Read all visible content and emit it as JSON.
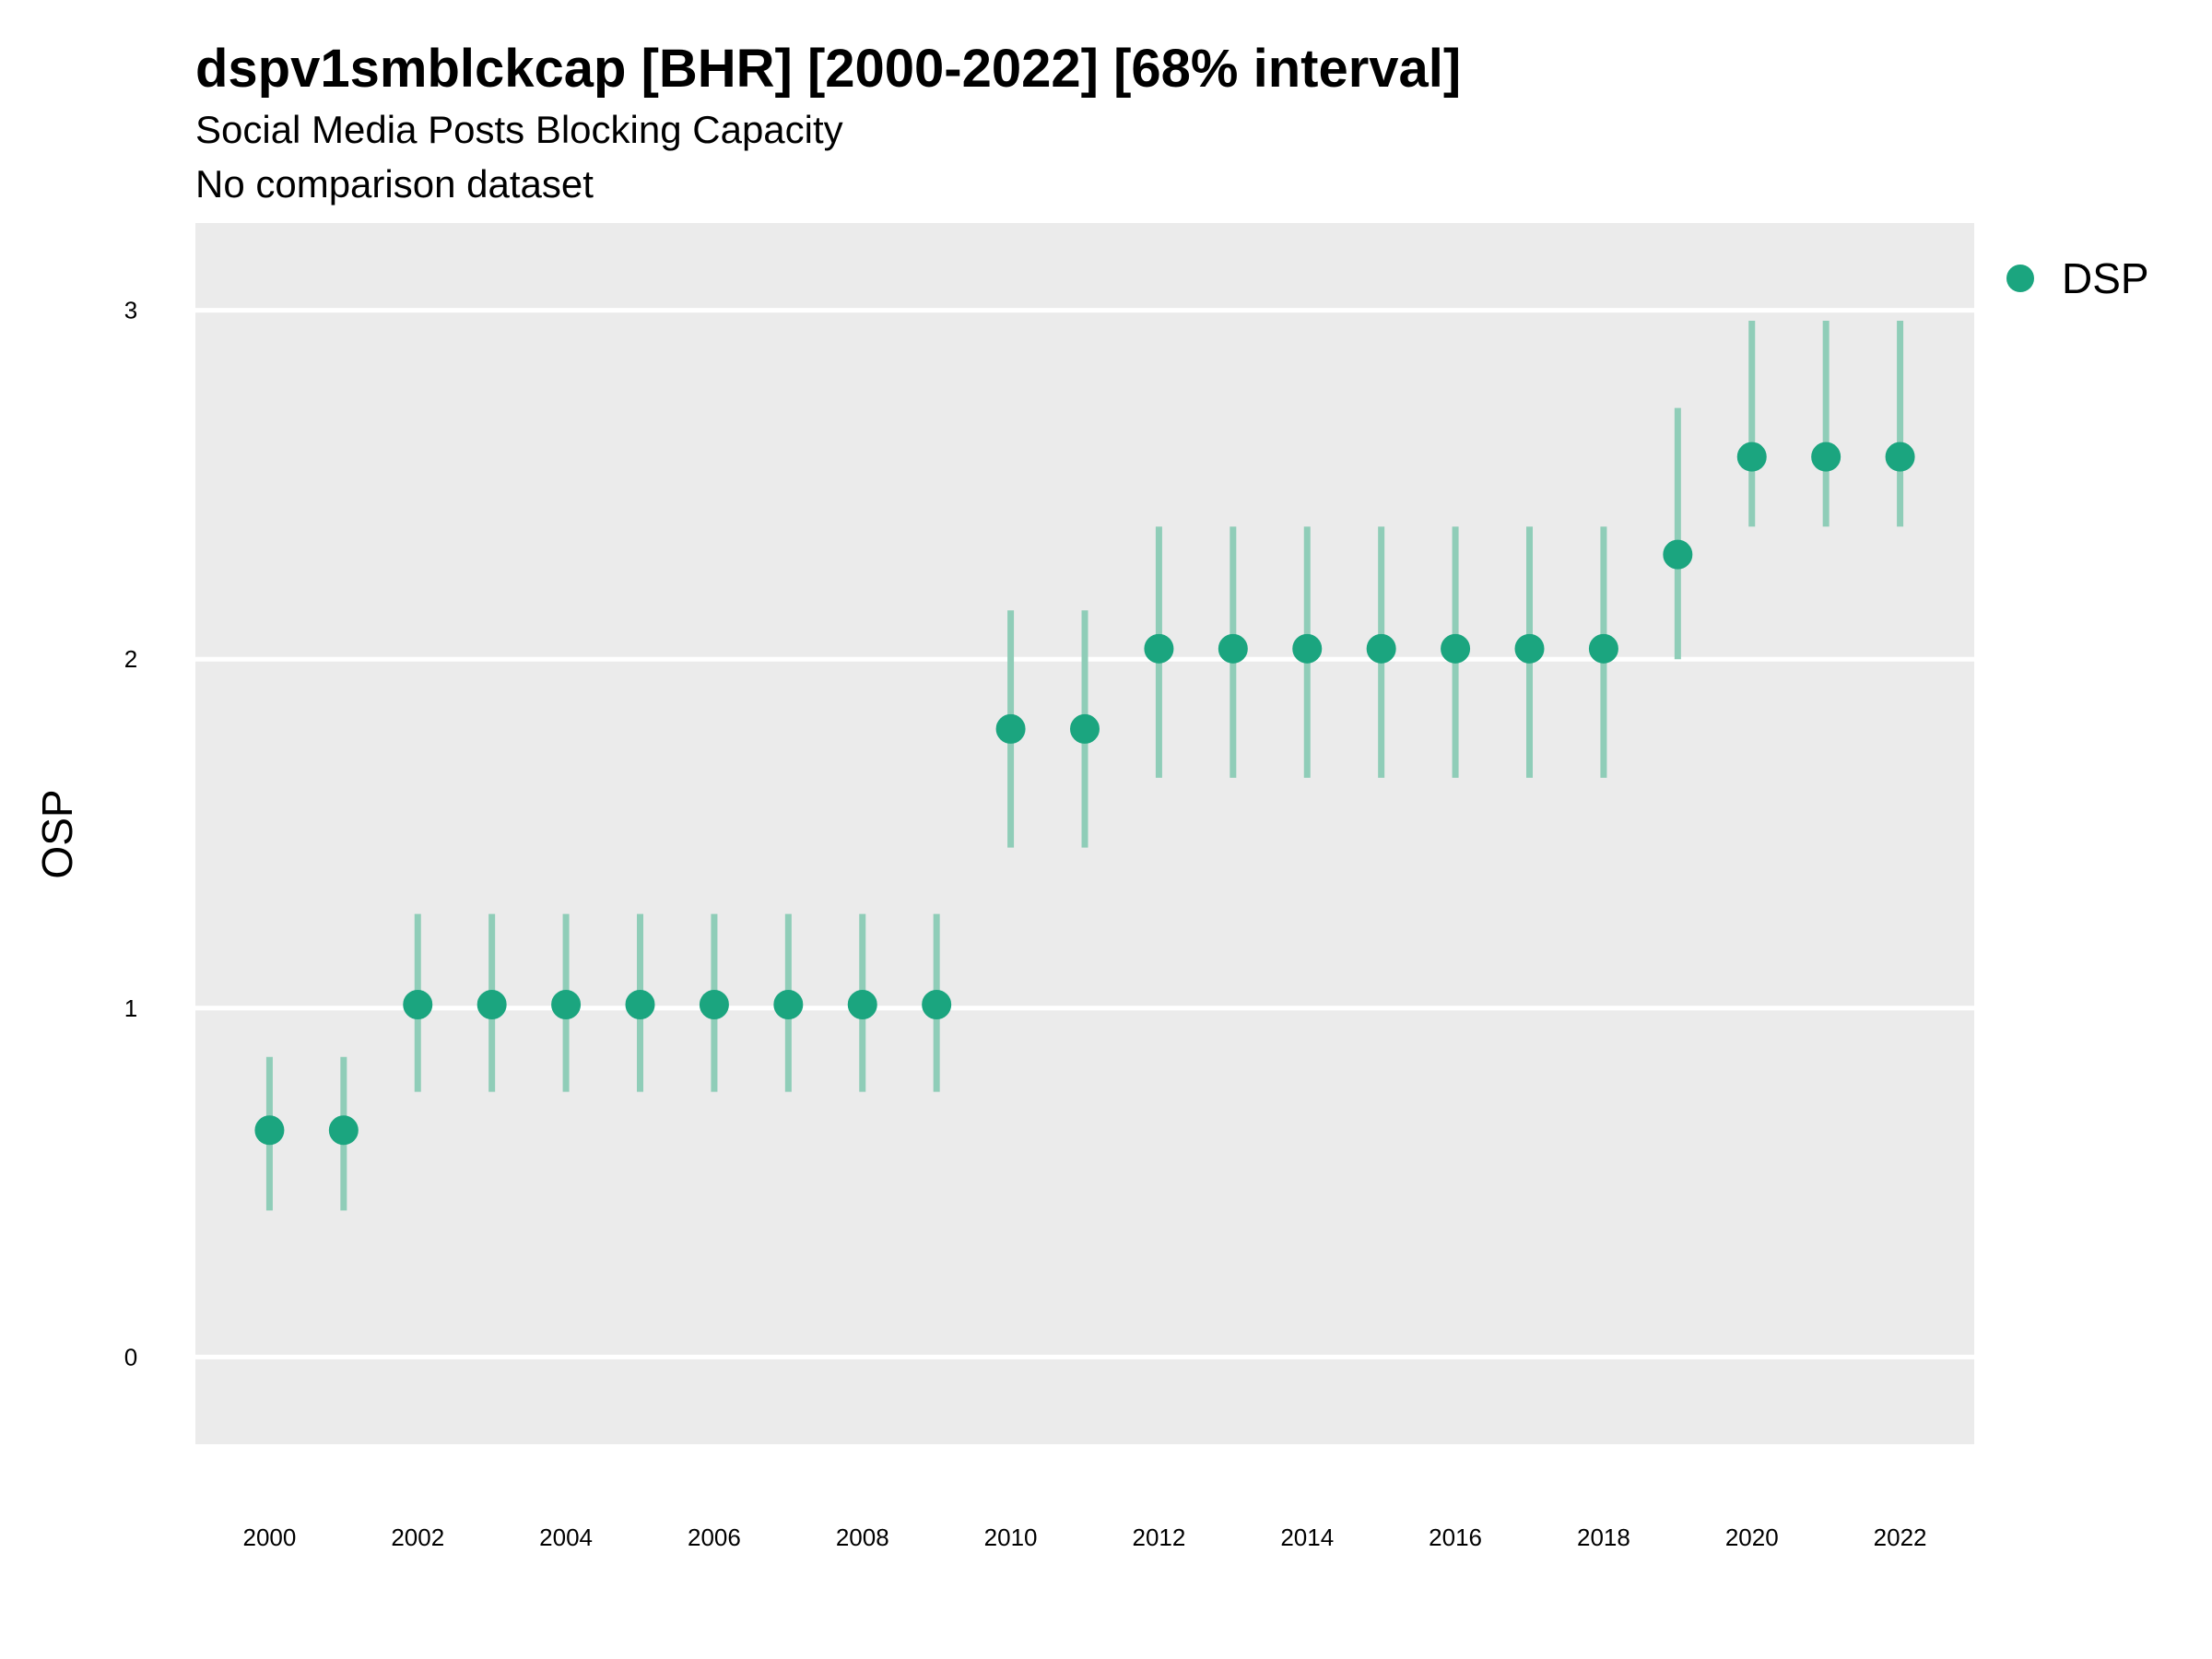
{
  "chart_data": {
    "type": "scatter",
    "title": "dspv1smblckcap [BHR] [2000-2022] [68% interval]",
    "subtitle": "Social Media Posts Blocking Capacity",
    "caption": "No comparison dataset",
    "xlabel": "",
    "ylabel": "OSP",
    "xlim": [
      1999,
      2023
    ],
    "ylim": [
      -0.25,
      3.25
    ],
    "x_ticks": [
      2000,
      2002,
      2004,
      2006,
      2008,
      2010,
      2012,
      2014,
      2016,
      2018,
      2020,
      2022
    ],
    "y_ticks": [
      0,
      1,
      2,
      3
    ],
    "grid": true,
    "legend_position": "right",
    "series": [
      {
        "name": "DSP",
        "color": "#1ba57f",
        "interval_color": "#8fcdb8",
        "x": [
          2000,
          2001,
          2002,
          2003,
          2004,
          2005,
          2006,
          2007,
          2008,
          2009,
          2010,
          2011,
          2012,
          2013,
          2014,
          2015,
          2016,
          2017,
          2018,
          2019,
          2020,
          2021,
          2022
        ],
        "y": [
          0.65,
          0.65,
          1.01,
          1.01,
          1.01,
          1.01,
          1.01,
          1.01,
          1.01,
          1.01,
          1.8,
          1.8,
          2.03,
          2.03,
          2.03,
          2.03,
          2.03,
          2.03,
          2.03,
          2.3,
          2.58,
          2.58,
          2.58
        ],
        "lower": [
          0.42,
          0.42,
          0.76,
          0.76,
          0.76,
          0.76,
          0.76,
          0.76,
          0.76,
          0.76,
          1.46,
          1.46,
          1.66,
          1.66,
          1.66,
          1.66,
          1.66,
          1.66,
          1.66,
          2.0,
          2.38,
          2.38,
          2.38
        ],
        "upper": [
          0.86,
          0.86,
          1.27,
          1.27,
          1.27,
          1.27,
          1.27,
          1.27,
          1.27,
          1.27,
          2.14,
          2.14,
          2.38,
          2.38,
          2.38,
          2.38,
          2.38,
          2.38,
          2.38,
          2.72,
          2.97,
          2.97,
          2.97
        ]
      }
    ]
  },
  "colors": {
    "panel_background": "#ebebeb",
    "gridline": "#ffffff"
  }
}
